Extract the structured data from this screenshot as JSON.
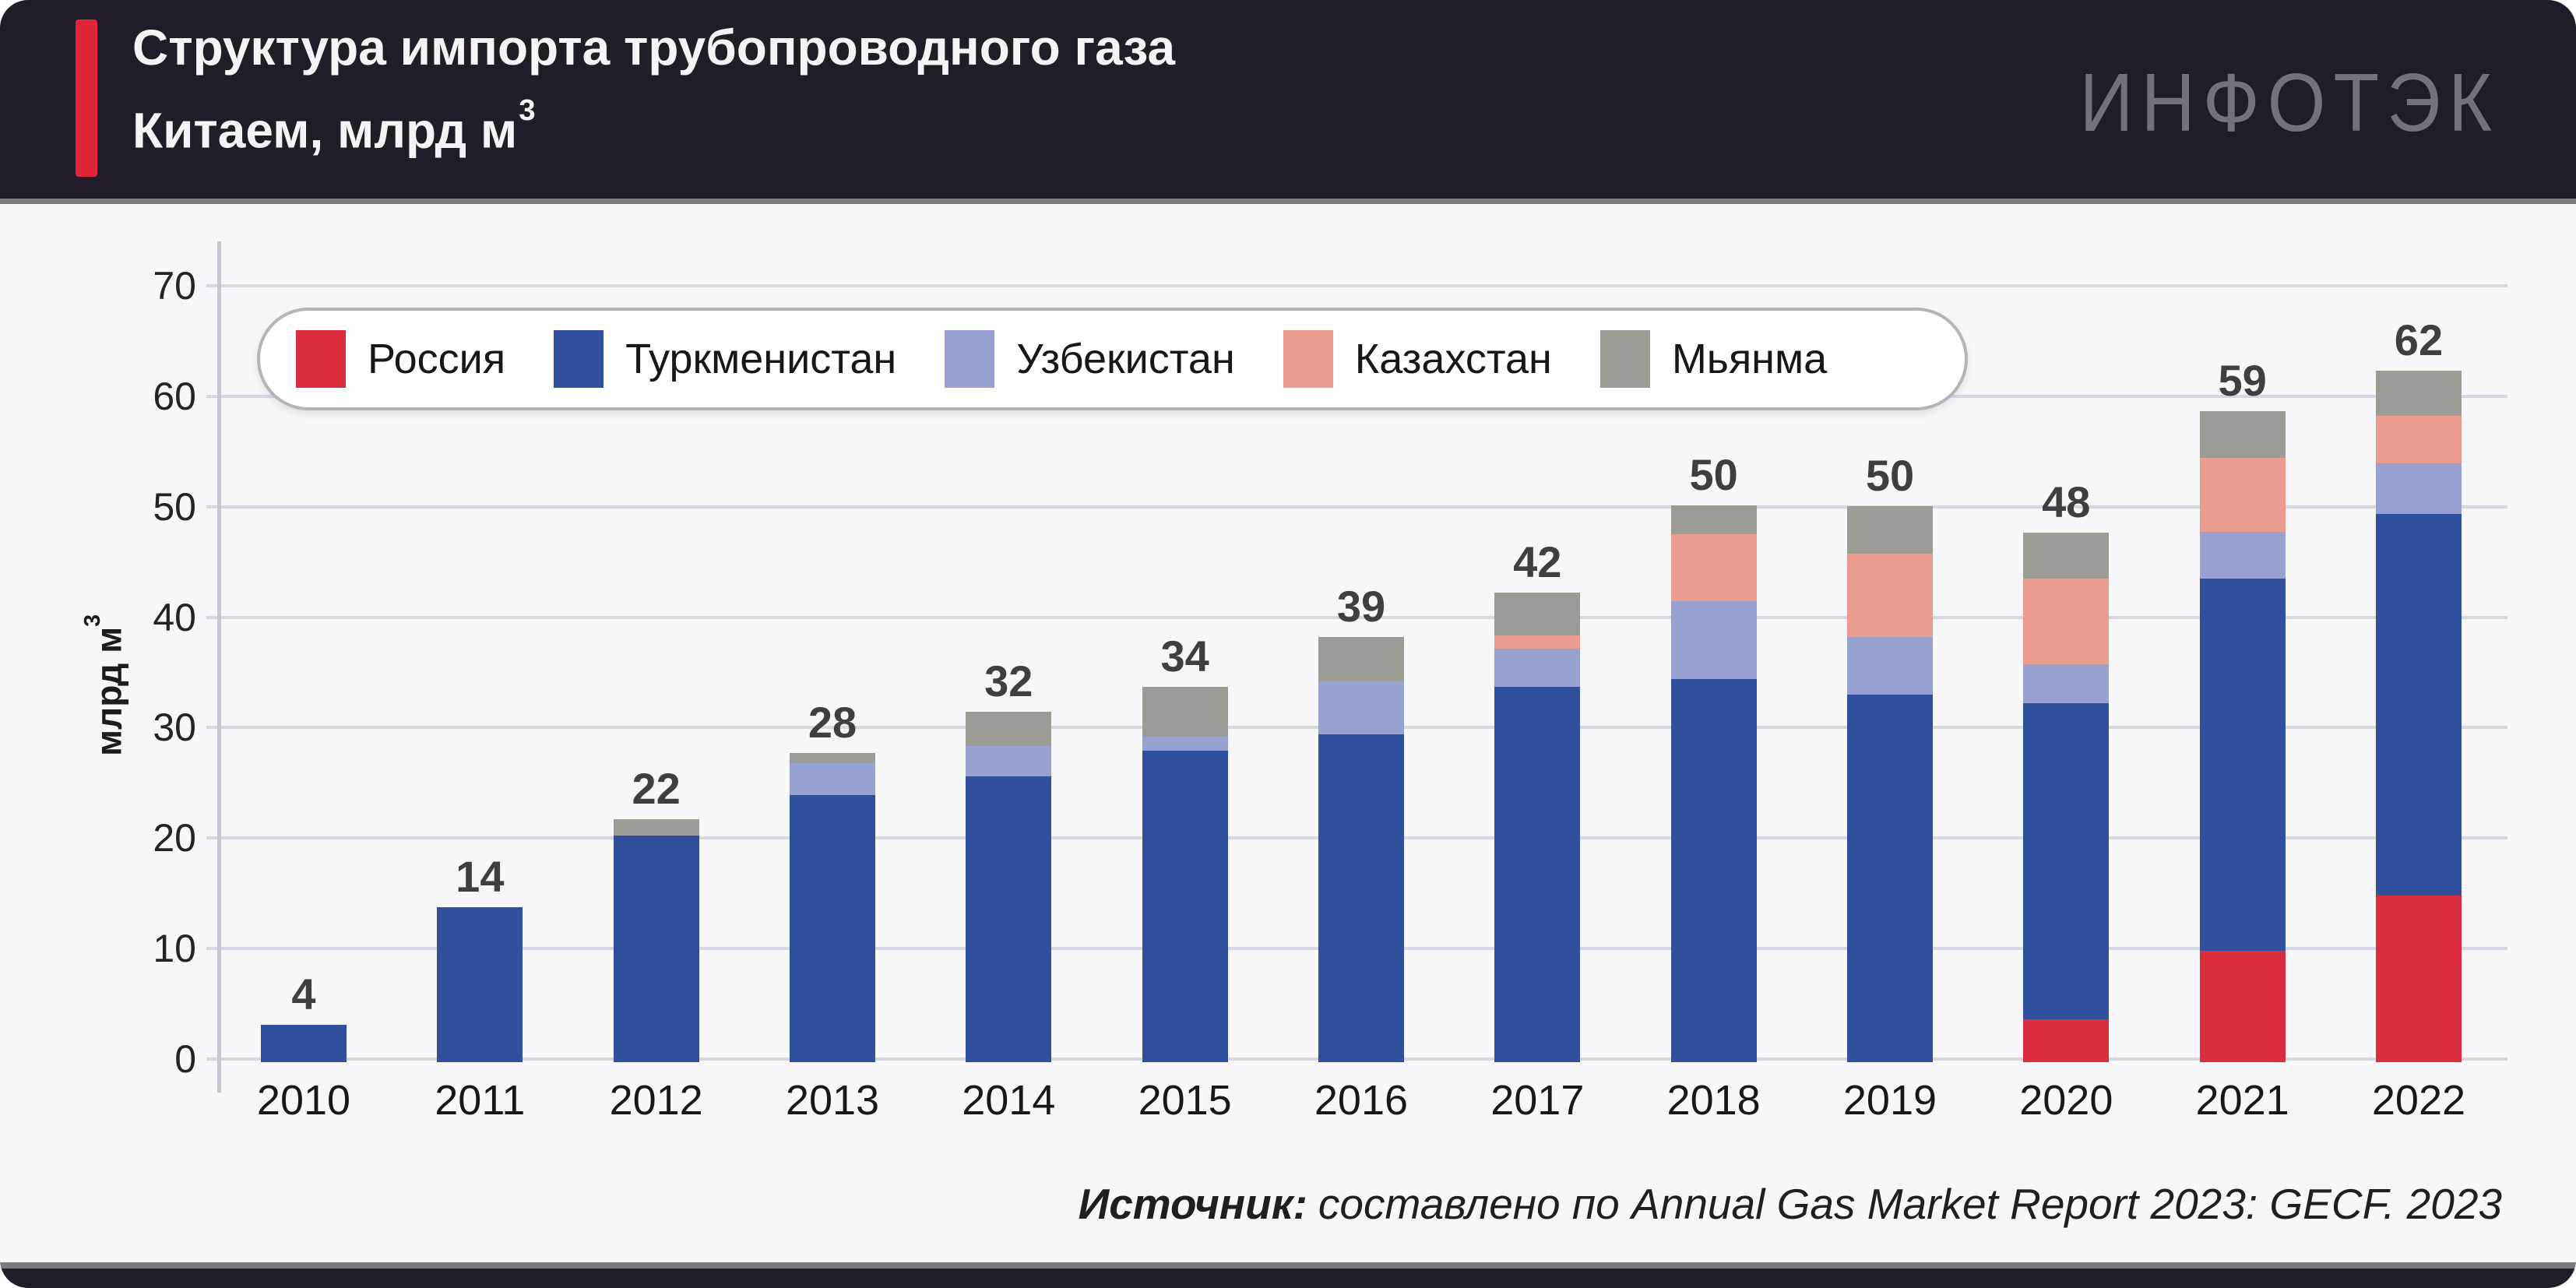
{
  "header": {
    "title_line1": "Структура импорта трубопроводного газа",
    "title_line2": "Китаем, млрд м",
    "title_superscript": "3",
    "logo": "ИНФОТЭК",
    "accent_color": "#E02539"
  },
  "chart_data": {
    "type": "bar",
    "stacked": true,
    "title": "Структура импорта трубопроводного газа Китаем, млрд м³",
    "xlabel": "",
    "ylabel": "млрд м",
    "ylabel_superscript": "3",
    "ylim": [
      0,
      70
    ],
    "yticks": [
      0,
      10,
      20,
      30,
      40,
      50,
      60,
      70
    ],
    "grid": true,
    "legend_position": "top-left",
    "categories": [
      "2010",
      "2011",
      "2012",
      "2013",
      "2014",
      "2015",
      "2016",
      "2017",
      "2018",
      "2019",
      "2020",
      "2021",
      "2022"
    ],
    "totals_labels": [
      "4",
      "14",
      "22",
      "28",
      "32",
      "34",
      "39",
      "42",
      "50",
      "50",
      "48",
      "59",
      "62"
    ],
    "series": [
      {
        "name": "Россия",
        "color": "#DB2D3D",
        "values": [
          0,
          0,
          0,
          0,
          0,
          0,
          0,
          0,
          0,
          0,
          3.9,
          10.1,
          15.1
        ]
      },
      {
        "name": "Туркменистан",
        "color": "#30509E",
        "values": [
          3.4,
          14,
          20.5,
          24.2,
          25.9,
          28.2,
          29.7,
          34,
          34.7,
          33.3,
          28.6,
          33.7,
          34.5
        ]
      },
      {
        "name": "Узбекистан",
        "color": "#99A1D0",
        "values": [
          0,
          0,
          0,
          2.9,
          2.7,
          1.3,
          4.8,
          3.4,
          7,
          5.2,
          3.5,
          4.2,
          4.6
        ]
      },
      {
        "name": "Казахстан",
        "color": "#EC9B8F",
        "values": [
          0,
          0,
          0,
          0,
          0,
          0,
          0,
          1.2,
          6.1,
          7.5,
          7.8,
          6.7,
          4.3
        ]
      },
      {
        "name": "Мьянма",
        "color": "#9C9C96",
        "values": [
          0,
          0,
          1.5,
          0.9,
          3.1,
          4.5,
          4.0,
          3.9,
          2.6,
          4.3,
          4.1,
          4.2,
          4.1
        ]
      }
    ]
  },
  "source": {
    "label": "Источник:",
    "text": "составлено по Annual Gas Market Report 2023: GECF. 2023"
  }
}
